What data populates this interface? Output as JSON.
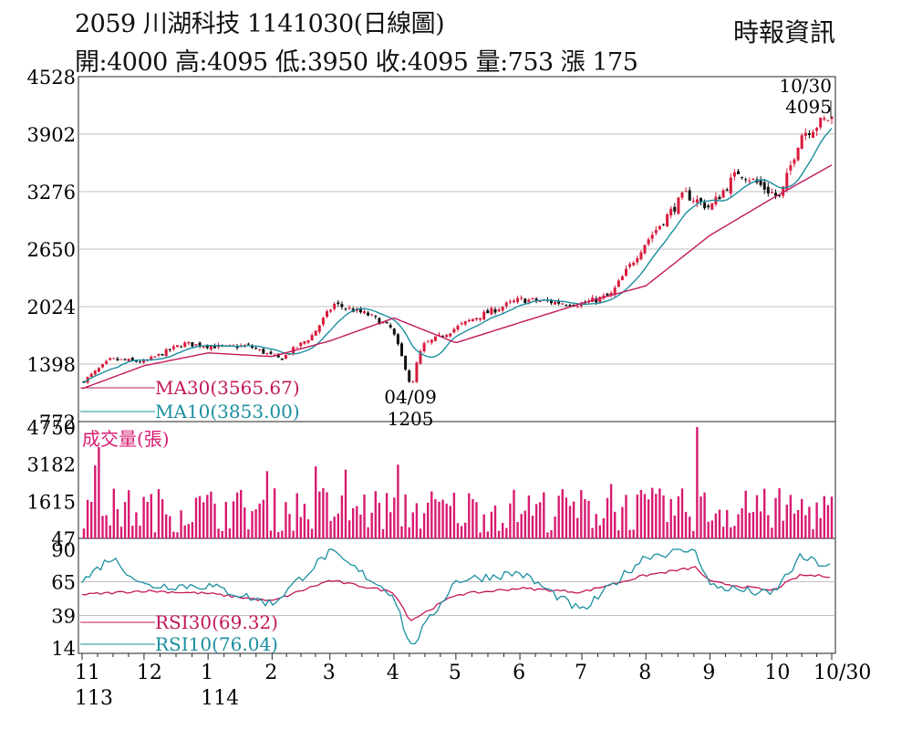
{
  "header": {
    "title": "2059  川湖科技 1141030(日線圖)",
    "quote": "開:4000 高:4095 低:3950 收:4095 量:753 漲 175",
    "brand": "時報資訊"
  },
  "chart_data": [
    {
      "type": "candlestick",
      "panel": "price",
      "y_ticks": [
        "4528",
        "3902",
        "3276",
        "2650",
        "2024",
        "1398",
        "772"
      ],
      "ylim": [
        772,
        4528
      ],
      "legend": [
        {
          "name": "MA30(3565.67)",
          "color": "#c2185b"
        },
        {
          "name": "MA10(3853.00)",
          "color": "#1a8fa0"
        }
      ],
      "annotations": [
        {
          "text": "10/30",
          "x": "10/30"
        },
        {
          "text": "4095",
          "x": "10/30"
        },
        {
          "text": "04/09",
          "x": "04/09"
        },
        {
          "text": "1205",
          "x": "04/09"
        }
      ],
      "anchor_points": [
        {
          "x": "11/01",
          "close": 1200
        },
        {
          "x": "11/15",
          "close": 1450
        },
        {
          "x": "12/01",
          "close": 1420
        },
        {
          "x": "12/20",
          "close": 1620
        },
        {
          "x": "01/10",
          "close": 1580
        },
        {
          "x": "01/20",
          "close": 1600
        },
        {
          "x": "02/05",
          "close": 1450
        },
        {
          "x": "02/20",
          "close": 1700
        },
        {
          "x": "03/03",
          "close": 2050
        },
        {
          "x": "03/20",
          "close": 1930
        },
        {
          "x": "03/31",
          "close": 1780
        },
        {
          "x": "04/09",
          "close": 1205
        },
        {
          "x": "04/15",
          "close": 1600
        },
        {
          "x": "05/10",
          "close": 1900
        },
        {
          "x": "06/01",
          "close": 2100
        },
        {
          "x": "07/01",
          "close": 2050
        },
        {
          "x": "07/15",
          "close": 2150
        },
        {
          "x": "07/31",
          "close": 2700
        },
        {
          "x": "08/20",
          "close": 3250
        },
        {
          "x": "09/01",
          "close": 3100
        },
        {
          "x": "09/15",
          "close": 3500
        },
        {
          "x": "10/05",
          "close": 3200
        },
        {
          "x": "10/15",
          "close": 3900
        },
        {
          "x": "10/30",
          "close": 4095
        }
      ],
      "ma30_points": [
        {
          "x": "11/01",
          "value": 1130
        },
        {
          "x": "12/01",
          "value": 1380
        },
        {
          "x": "01/01",
          "value": 1520
        },
        {
          "x": "02/01",
          "value": 1480
        },
        {
          "x": "03/01",
          "value": 1650
        },
        {
          "x": "04/01",
          "value": 1900
        },
        {
          "x": "05/01",
          "value": 1630
        },
        {
          "x": "06/01",
          "value": 1850
        },
        {
          "x": "07/01",
          "value": 2060
        },
        {
          "x": "08/01",
          "value": 2250
        },
        {
          "x": "09/01",
          "value": 2800
        },
        {
          "x": "10/01",
          "value": 3200
        },
        {
          "x": "10/30",
          "value": 3565.67
        }
      ]
    },
    {
      "type": "bar",
      "panel": "volume",
      "title": "成交量(張)",
      "y_ticks": [
        "4750",
        "3182",
        "1615",
        "47"
      ],
      "ylim": [
        47,
        4750
      ],
      "peaks": [
        {
          "x": "11/10",
          "value": 3900
        },
        {
          "x": "08/25",
          "value": 4750
        }
      ],
      "typical_range": [
        300,
        2200
      ]
    },
    {
      "type": "line",
      "panel": "rsi",
      "y_ticks": [
        "90",
        "65",
        "39",
        "14"
      ],
      "ylim": [
        14,
        90
      ],
      "series": [
        {
          "name": "RSI30(69.32)",
          "color": "#c2185b",
          "points": [
            {
              "x": "11/01",
              "value": 55
            },
            {
              "x": "12/01",
              "value": 58
            },
            {
              "x": "01/01",
              "value": 56
            },
            {
              "x": "02/01",
              "value": 50
            },
            {
              "x": "03/01",
              "value": 66
            },
            {
              "x": "04/01",
              "value": 57
            },
            {
              "x": "04/09",
              "value": 35
            },
            {
              "x": "05/01",
              "value": 55
            },
            {
              "x": "06/01",
              "value": 60
            },
            {
              "x": "07/01",
              "value": 57
            },
            {
              "x": "08/01",
              "value": 70
            },
            {
              "x": "08/25",
              "value": 76
            },
            {
              "x": "09/01",
              "value": 65
            },
            {
              "x": "10/01",
              "value": 58
            },
            {
              "x": "10/15",
              "value": 70
            },
            {
              "x": "10/30",
              "value": 69.32
            }
          ]
        },
        {
          "name": "RSI10(76.04)",
          "color": "#1a8fa0",
          "points": [
            {
              "x": "11/01",
              "value": 65
            },
            {
              "x": "11/15",
              "value": 84
            },
            {
              "x": "12/01",
              "value": 62
            },
            {
              "x": "01/01",
              "value": 62
            },
            {
              "x": "02/01",
              "value": 48
            },
            {
              "x": "03/01",
              "value": 88
            },
            {
              "x": "04/01",
              "value": 55
            },
            {
              "x": "04/09",
              "value": 14
            },
            {
              "x": "05/01",
              "value": 66
            },
            {
              "x": "06/01",
              "value": 72
            },
            {
              "x": "07/01",
              "value": 42
            },
            {
              "x": "08/01",
              "value": 85
            },
            {
              "x": "08/25",
              "value": 90
            },
            {
              "x": "09/01",
              "value": 62
            },
            {
              "x": "10/01",
              "value": 55
            },
            {
              "x": "10/15",
              "value": 84
            },
            {
              "x": "10/30",
              "value": 76.04
            }
          ]
        }
      ]
    }
  ],
  "x_axis": {
    "ticks": [
      {
        "label": "11",
        "x": "11/01"
      },
      {
        "label": "12",
        "x": "12/01"
      },
      {
        "label": "1",
        "x": "01/01"
      },
      {
        "label": "2",
        "x": "02/01"
      },
      {
        "label": "3",
        "x": "03/01"
      },
      {
        "label": "4",
        "x": "04/01"
      },
      {
        "label": "5",
        "x": "05/01"
      },
      {
        "label": "6",
        "x": "06/01"
      },
      {
        "label": "7",
        "x": "07/01"
      },
      {
        "label": "8",
        "x": "08/01"
      },
      {
        "label": "9",
        "x": "09/01"
      },
      {
        "label": "10",
        "x": "10/01"
      },
      {
        "label": "10/30",
        "x": "10/30"
      }
    ],
    "year_labels": [
      {
        "label": "113",
        "x": "11/01"
      },
      {
        "label": "114",
        "x": "01/01"
      }
    ]
  },
  "colors": {
    "up": "#d81b3c",
    "down": "#111111",
    "volume": "#d81b72",
    "ma30": "#c2185b",
    "ma10": "#1a8fa0",
    "grid": "#aaaaaa"
  }
}
